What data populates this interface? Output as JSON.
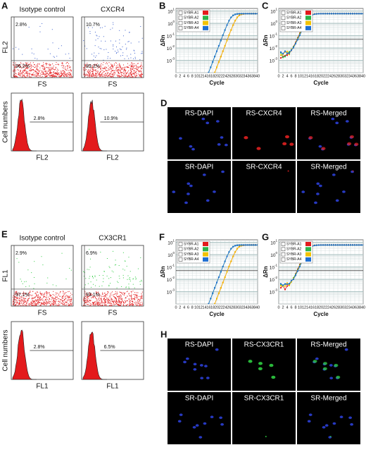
{
  "flow_A": {
    "letter": "A",
    "titles": [
      "Isotype control",
      "CXCR4"
    ],
    "scatter": [
      {
        "ul": "2.8%",
        "ll": "96.2%"
      },
      {
        "ul": "10.7%",
        "ll": "89.2%"
      }
    ],
    "scatter_y": "FL2",
    "scatter_x": "FS",
    "hist_y": "Cell numbers",
    "hist": [
      "2.8%",
      "10.9%"
    ],
    "hist_x": "FL2"
  },
  "qpcr_B": {
    "letter": "B",
    "legend": [
      "SYBR-A1",
      "SYBR-A2",
      "SYBR-A3",
      "SYBR-A4"
    ],
    "ylabel": "ΔRn",
    "xlabel": "Cycle",
    "xticks": [
      0,
      2,
      4,
      6,
      8,
      10,
      12,
      14,
      16,
      18,
      20,
      22,
      24,
      26,
      28,
      30,
      32,
      34,
      36,
      38,
      40
    ],
    "yticks": [
      {
        "base": "10",
        "exp": "1"
      },
      {
        "base": "10",
        "exp": "0"
      },
      {
        "base": "10",
        "exp": "-1"
      },
      {
        "base": "10",
        "exp": "-2"
      },
      {
        "base": "10",
        "exp": "-3"
      }
    ]
  },
  "qpcr_C": {
    "letter": "C",
    "legend": [
      "SYBR-A1",
      "SYBR-A2",
      "SYBR-A3",
      "SYBR-A4"
    ],
    "ylabel": "ΔRn",
    "xlabel": "Cycle",
    "xticks": [
      0,
      2,
      4,
      6,
      8,
      10,
      12,
      14,
      16,
      18,
      20,
      22,
      24,
      26,
      28,
      30,
      32,
      34,
      36,
      38,
      40
    ],
    "yticks": [
      {
        "base": "10",
        "exp": "1"
      },
      {
        "base": "10",
        "exp": "0"
      },
      {
        "base": "10",
        "exp": "-1"
      },
      {
        "base": "10",
        "exp": "-2"
      },
      {
        "base": "10",
        "exp": "-3"
      }
    ]
  },
  "images_D": {
    "letter": "D",
    "labels": [
      [
        "RS-DAPI",
        "RS-CXCR4",
        "RS-Merged"
      ],
      [
        "SR-DAPI",
        "SR-CXCR4",
        "SR-Merged"
      ]
    ]
  },
  "flow_E": {
    "letter": "E",
    "titles": [
      "Isotype control",
      "CX3CR1"
    ],
    "scatter": [
      {
        "ul": "2.9%",
        "ll": "97.1%"
      },
      {
        "ul": "6.9%",
        "ll": "93.1%"
      }
    ],
    "scatter_y": "FL1",
    "scatter_x": "FS",
    "hist_y": "Cell numbers",
    "hist": [
      "2.8%",
      "6.5%"
    ],
    "hist_x": "FL1"
  },
  "qpcr_F": {
    "letter": "F",
    "legend": [
      "SYBR-A1",
      "SYBR-A2",
      "SYBR-A3",
      "SYBR-A4"
    ],
    "ylabel": "ΔRn",
    "xlabel": "Cycle",
    "xticks": [
      0,
      2,
      4,
      6,
      8,
      10,
      12,
      14,
      16,
      18,
      20,
      22,
      24,
      26,
      28,
      30,
      32,
      34,
      36,
      38,
      40
    ],
    "yticks": [
      {
        "base": "10",
        "exp": "1"
      },
      {
        "base": "10",
        "exp": "0"
      },
      {
        "base": "10",
        "exp": "-1"
      },
      {
        "base": "10",
        "exp": "-2"
      },
      {
        "base": "10",
        "exp": "-3"
      }
    ]
  },
  "qpcr_G": {
    "letter": "G",
    "legend": [
      "SYBR-A1",
      "SYBR-A2",
      "SYBR-A3",
      "SYBR-A4"
    ],
    "ylabel": "ΔRn",
    "xlabel": "Cycle",
    "xticks": [
      0,
      2,
      4,
      6,
      8,
      10,
      12,
      14,
      16,
      18,
      20,
      22,
      24,
      26,
      28,
      30,
      32,
      34,
      36,
      38,
      40
    ],
    "yticks": [
      {
        "base": "10",
        "exp": "1"
      },
      {
        "base": "10",
        "exp": "0"
      },
      {
        "base": "10",
        "exp": "-1"
      },
      {
        "base": "10",
        "exp": "-2"
      },
      {
        "base": "10",
        "exp": "-3"
      }
    ]
  },
  "images_H": {
    "letter": "H",
    "labels": [
      [
        "RS-DAPI",
        "RS-CX3CR1",
        "RS-Merged"
      ],
      [
        "SR-DAPI",
        "SR-CX3CR1",
        "SR-Merged"
      ]
    ]
  }
}
